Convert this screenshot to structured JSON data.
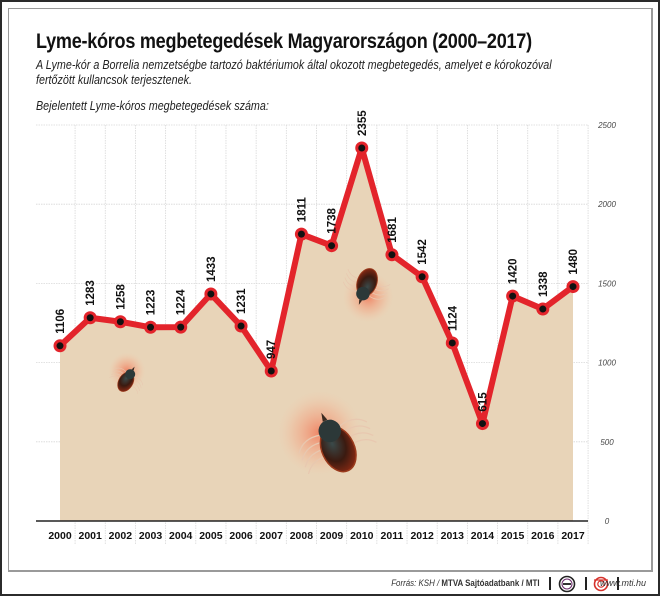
{
  "header": {
    "title": "Lyme-kóros megbetegedések Magyarországon (2000–2017)",
    "subtitle": "A Lyme-kór a Borrelia nemzetségbe tartozó baktériumok által okozott megbetegedés, amelyet e kórokozóval fertőzött kullancsok terjesztenek.",
    "series_label": "Bejelentett Lyme-kóros megbetegedések száma:"
  },
  "footer": {
    "source_prefix": "Forrás: KSH / ",
    "source_bold": "MTVA Sajtóadatbank / MTI",
    "logo1": "mtva-logo-icon",
    "logo2": "mti-logo-icon",
    "url": "www.mti.hu"
  },
  "colors": {
    "area_fill": "#e8d4b8",
    "line": "#e3242b",
    "marker": "#111111",
    "grid": "#d8d8d8",
    "axis": "#222222"
  },
  "decorations": [
    "tick-image-small",
    "tick-image-medium",
    "tick-image-large"
  ],
  "chart_data": {
    "type": "area",
    "title": "Lyme-kóros megbetegedések Magyarországon (2000–2017)",
    "subtitle": "Bejelentett Lyme-kóros megbetegedések száma:",
    "xlabel": "",
    "ylabel": "",
    "categories": [
      "2000",
      "2001",
      "2002",
      "2003",
      "2004",
      "2005",
      "2006",
      "2007",
      "2008",
      "2009",
      "2010",
      "2011",
      "2012",
      "2013",
      "2014",
      "2015",
      "2016",
      "2017"
    ],
    "values": [
      1106,
      1283,
      1258,
      1223,
      1224,
      1433,
      1231,
      947,
      1811,
      1738,
      2355,
      1681,
      1542,
      1124,
      615,
      1420,
      1338,
      1480
    ],
    "yticks": [
      0,
      500,
      1000,
      1500,
      2000,
      2500
    ],
    "ylim": [
      0,
      2500
    ],
    "grid": true,
    "y_axis_position": "right",
    "data_labels": true,
    "legend": "none"
  }
}
